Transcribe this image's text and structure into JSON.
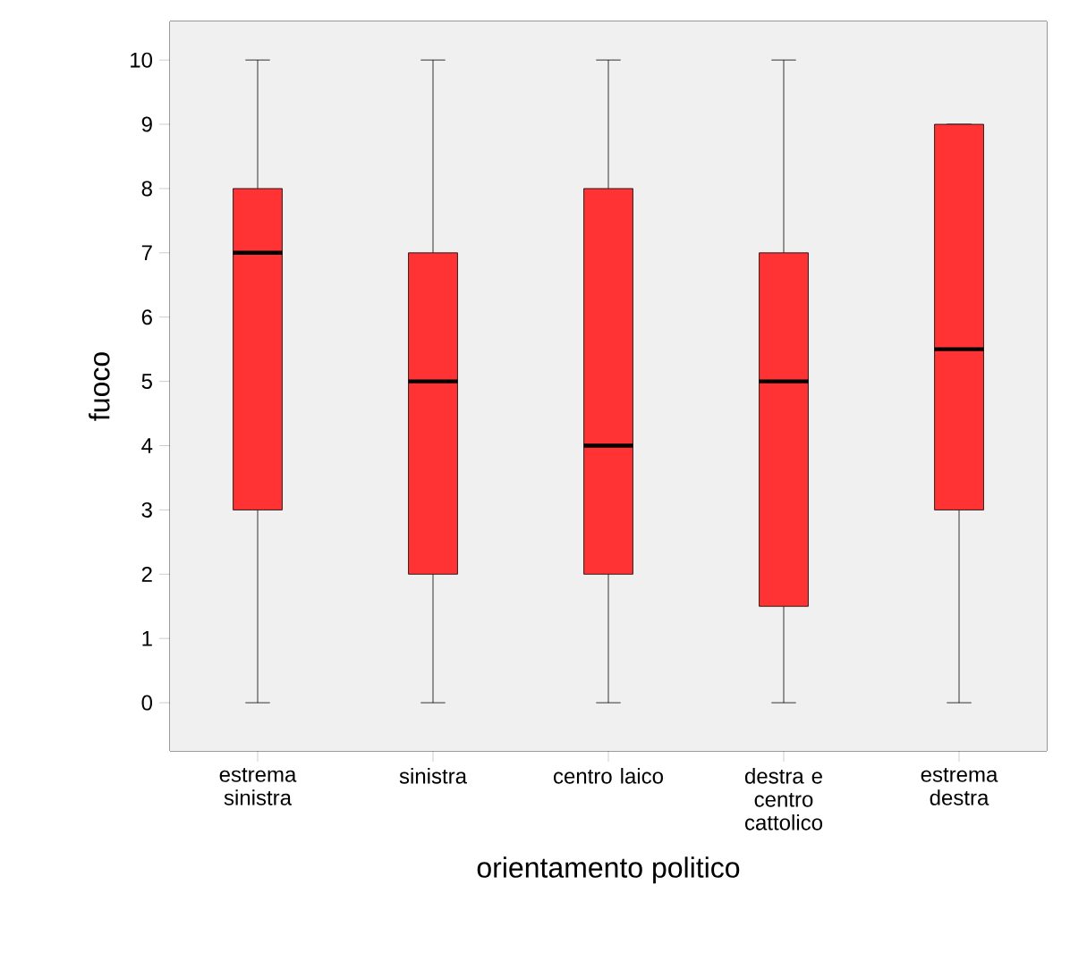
{
  "chart_data": {
    "type": "box",
    "xlabel": "orientamento politico",
    "ylabel": "fuoco",
    "categories": [
      "estrema sinistra",
      "sinistra",
      "centro laico",
      "destra e centro cattolico",
      "estrema destra"
    ],
    "boxes": [
      {
        "low": 0,
        "q1": 3,
        "median": 7,
        "q3": 8,
        "high": 10
      },
      {
        "low": 0,
        "q1": 2,
        "median": 5,
        "q3": 7,
        "high": 10
      },
      {
        "low": 0,
        "q1": 2,
        "median": 4,
        "q3": 8,
        "high": 10
      },
      {
        "low": 0,
        "q1": 1.5,
        "median": 5,
        "q3": 7,
        "high": 10
      },
      {
        "low": 0,
        "q1": 3,
        "median": 5.5,
        "q3": 9,
        "high": 9
      }
    ],
    "color": "#ff3333",
    "ylim": [
      -0.75,
      10.6
    ],
    "yticks": [
      0,
      1,
      2,
      3,
      4,
      5,
      6,
      7,
      8,
      9,
      10
    ]
  }
}
